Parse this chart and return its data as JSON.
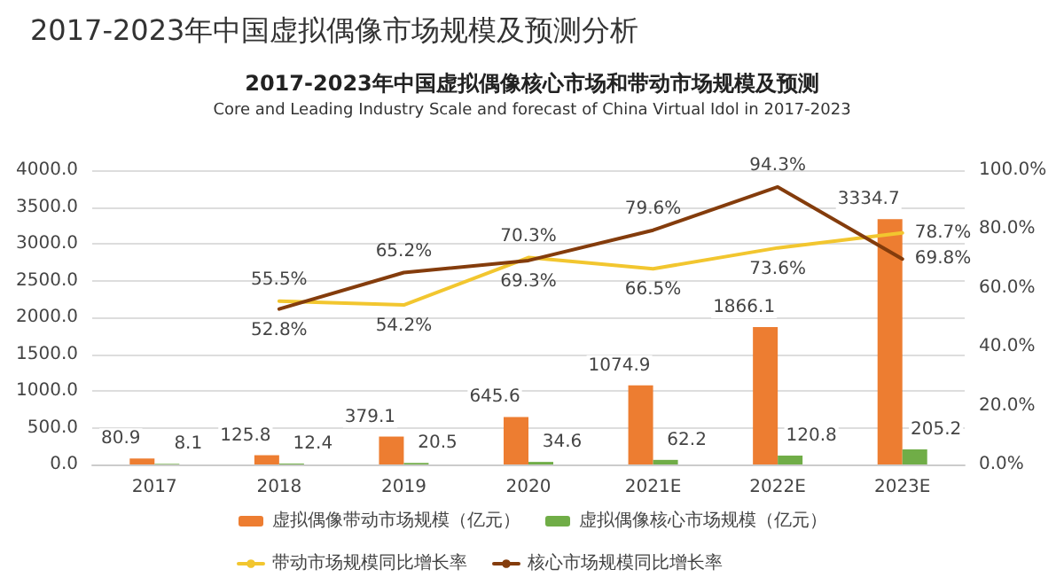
{
  "chart_data": {
    "type": "bar",
    "title": "2017-2023年中国虚拟偶像市场规模及预测分析",
    "subtitle": "2017-2023年中国虚拟偶像核心市场和带动市场规模及预测",
    "annotations": [
      "Core and Leading Industry Scale and forecast of China Virtual Idol in 2017-2023"
    ],
    "categories": [
      "2017",
      "2018",
      "2019",
      "2020",
      "2021E",
      "2022E",
      "2023E"
    ],
    "series": [
      {
        "name": "虚拟偶像带动市场规模（亿元）",
        "color": "#ed7d31",
        "values": [
          80.9,
          125.8,
          379.1,
          645.6,
          1074.9,
          1866.1,
          3334.7
        ]
      },
      {
        "name": "虚拟偶像核心市场规模（亿元）",
        "color": "#70ad47",
        "values": [
          8.1,
          12.4,
          20.5,
          34.6,
          62.2,
          120.8,
          205.2
        ]
      },
      {
        "name": "带动市场规模同比增长率",
        "type": "line",
        "axis": "y2",
        "color": "#f2c62f",
        "values": [
          null,
          55.5,
          54.2,
          70.3,
          66.5,
          73.6,
          78.7
        ],
        "value_labels": [
          null,
          "55.5%",
          "54.2%",
          "70.3%",
          "66.5%",
          "73.6%",
          "78.7%"
        ]
      },
      {
        "name": "核心市场规模同比增长率",
        "type": "line",
        "axis": "y2",
        "color": "#843c0c",
        "values": [
          null,
          52.8,
          65.2,
          69.3,
          79.6,
          94.3,
          69.8
        ],
        "value_labels": [
          null,
          "52.8%",
          "65.2%",
          "69.3%",
          "79.6%",
          "94.3%",
          "69.8%"
        ]
      }
    ],
    "ylim": [
      0,
      4000
    ],
    "yticks": [
      {
        "value": 0,
        "label": "0.0"
      },
      {
        "value": 500,
        "label": "500.0"
      },
      {
        "value": 1000,
        "label": "1000.0"
      },
      {
        "value": 1500,
        "label": "1500.0"
      },
      {
        "value": 2000,
        "label": "2000.0"
      },
      {
        "value": 2500,
        "label": "2500.0"
      },
      {
        "value": 3000,
        "label": "3000.0"
      },
      {
        "value": 3500,
        "label": "3500.0"
      },
      {
        "value": 4000,
        "label": "4000.0"
      }
    ],
    "y2lim": [
      0,
      100
    ],
    "y2ticks": [
      {
        "value": 0,
        "label": "0.0%"
      },
      {
        "value": 20,
        "label": "20.0%"
      },
      {
        "value": 40,
        "label": "40.0%"
      },
      {
        "value": 60,
        "label": "60.0%"
      },
      {
        "value": 80,
        "label": "80.0%"
      },
      {
        "value": 100,
        "label": "100.0%"
      }
    ],
    "data_labels": true,
    "grid": "y",
    "legend": "bottom",
    "marker": "none",
    "line_style": "solid"
  }
}
